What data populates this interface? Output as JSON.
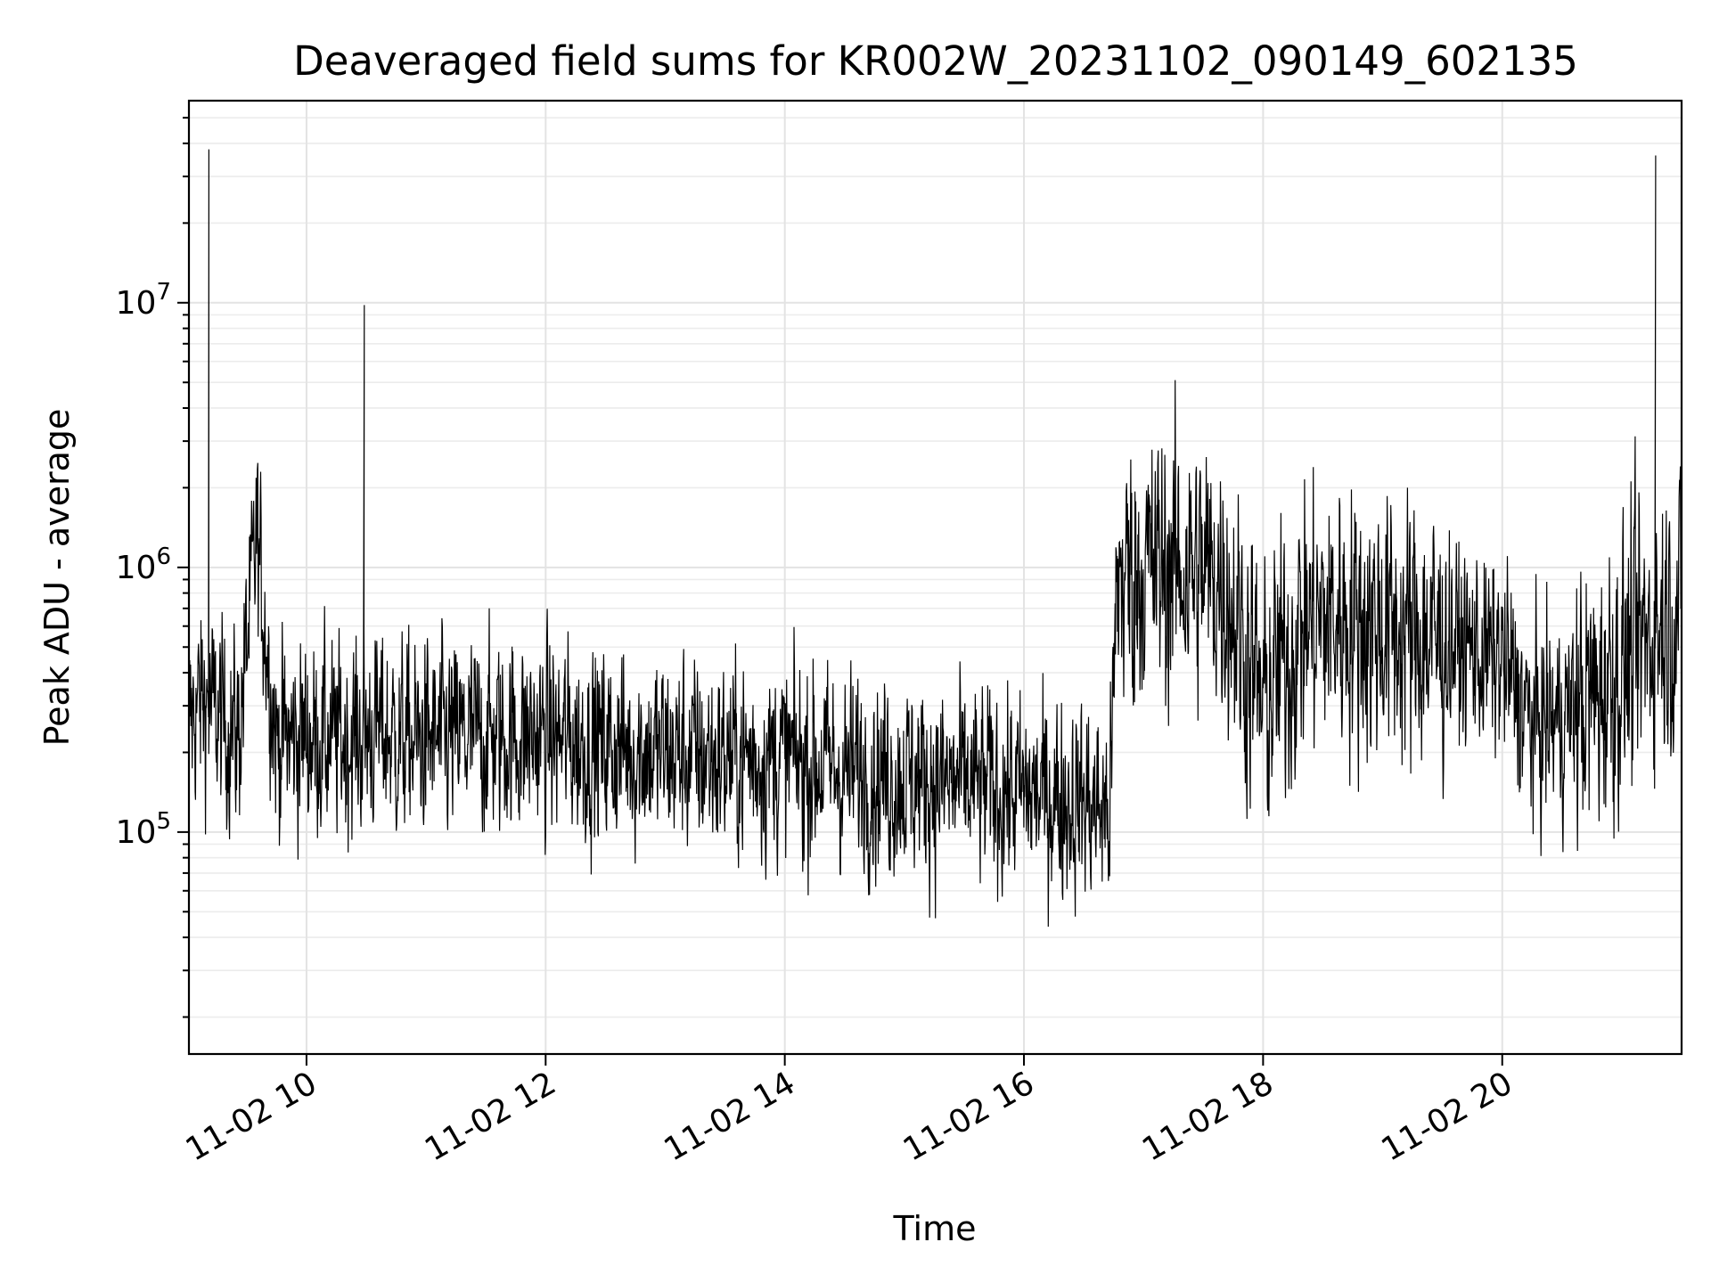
{
  "chart_data": {
    "type": "line",
    "title": "Deaveraged field sums for KR002W_20231102_090149_602135",
    "xlabel": "Time",
    "ylabel": "Peak ADU - average",
    "x_range": [
      "2023-11-02 09:01",
      "2023-11-02 21:30"
    ],
    "ylim": [
      14500,
      58000000
    ],
    "yscale": "log",
    "grid": true,
    "line_color": "#000000",
    "x_ticks": [
      "11-02 10",
      "11-02 12",
      "11-02 14",
      "11-02 16",
      "11-02 18",
      "11-02 20"
    ],
    "y_tick_base": "10",
    "y_tick_exponents": [
      "5",
      "6",
      "7"
    ],
    "series": [
      {
        "x": [
          "2023-11-02 09:01",
          "2023-11-02 09:05",
          "2023-11-02 09:09",
          "2023-11-02 09:11",
          "2023-11-02 09:14",
          "2023-11-02 09:20",
          "2023-11-02 09:26",
          "2023-11-02 09:35",
          "2023-11-02 09:45",
          "2023-11-02 10:00",
          "2023-11-02 10:15",
          "2023-11-02 10:29",
          "2023-11-02 10:35",
          "2023-11-02 10:50",
          "2023-11-02 11:00",
          "2023-11-02 11:30",
          "2023-11-02 12:00",
          "2023-11-02 12:30",
          "2023-11-02 13:00",
          "2023-11-02 13:30",
          "2023-11-02 14:00",
          "2023-11-02 14:30",
          "2023-11-02 15:00",
          "2023-11-02 15:30",
          "2023-11-02 16:00",
          "2023-11-02 16:30",
          "2023-11-02 16:43",
          "2023-11-02 16:47",
          "2023-11-02 17:00",
          "2023-11-02 17:20",
          "2023-11-02 17:40",
          "2023-11-02 18:00",
          "2023-11-02 18:20",
          "2023-11-02 18:40",
          "2023-11-02 19:00",
          "2023-11-02 19:20",
          "2023-11-02 19:40",
          "2023-11-02 20:00",
          "2023-11-02 20:15",
          "2023-11-02 20:30",
          "2023-11-02 20:45",
          "2023-11-02 21:00",
          "2023-11-02 21:10",
          "2023-11-02 21:17",
          "2023-11-02 21:22",
          "2023-11-02 21:30"
        ],
        "values": [
          250000,
          300000,
          320000,
          38000000,
          280000,
          250000,
          230000,
          1300000,
          220000,
          230000,
          220000,
          9800000,
          240000,
          220000,
          220000,
          230000,
          230000,
          210000,
          200000,
          190000,
          190000,
          170000,
          160000,
          150000,
          140000,
          130000,
          120000,
          900000,
          1000000,
          1000000,
          900000,
          300000,
          600000,
          650000,
          600000,
          550000,
          500000,
          450000,
          250000,
          270000,
          320000,
          420000,
          520000,
          36000000,
          650000,
          700000
        ]
      }
    ]
  }
}
